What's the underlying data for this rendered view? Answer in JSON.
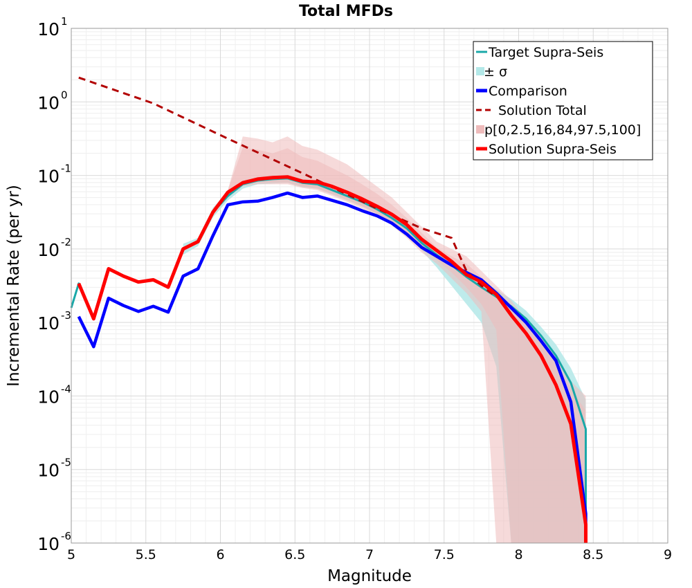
{
  "chart_data": {
    "type": "line",
    "title": "Total MFDs",
    "xlabel": "Magnitude",
    "ylabel": "Incremental Rate (per yr)",
    "xlim": [
      5,
      9
    ],
    "ylim_log10": [
      -6,
      1
    ],
    "y_scale": "log",
    "grid": true,
    "legend_position": "top-right",
    "x_ticks": [
      "5",
      "5.5",
      "6",
      "6.5",
      "7",
      "7.5",
      "8",
      "8.5",
      "9"
    ],
    "y_ticks": [
      {
        "base": "10",
        "exp": "1"
      },
      {
        "base": "10",
        "exp": "0"
      },
      {
        "base": "10",
        "exp": "-1"
      },
      {
        "base": "10",
        "exp": "-2"
      },
      {
        "base": "10",
        "exp": "-3"
      },
      {
        "base": "10",
        "exp": "-4"
      },
      {
        "base": "10",
        "exp": "-5"
      },
      {
        "base": "10",
        "exp": "-6"
      }
    ],
    "colors": {
      "target": "#1aa8a8",
      "sigma": "#b3e8e8",
      "comparison": "#0000ff",
      "total": "#b20000",
      "percentile": "#eebbbb",
      "supra": "#ff0000"
    },
    "legend": [
      {
        "key": "target",
        "label": "Target Supra-Seis"
      },
      {
        "key": "sigma",
        "label": "± σ"
      },
      {
        "key": "comparison",
        "label": "Comparison"
      },
      {
        "key": "total",
        "label": "Solution Total"
      },
      {
        "key": "percentile",
        "label": "p[0,2.5,16,84,97.5,100]"
      },
      {
        "key": "supra",
        "label": "Solution Supra-Seis"
      }
    ],
    "series": [
      {
        "key": "target",
        "name": "Target Supra-Seis",
        "x": [
          5.0,
          5.05,
          5.15,
          5.25,
          5.35,
          5.45,
          5.55,
          5.65,
          5.75,
          5.85,
          5.95,
          6.05,
          6.15,
          6.25,
          6.35,
          6.45,
          6.55,
          6.65,
          6.75,
          6.85,
          6.95,
          7.05,
          7.15,
          7.25,
          7.35,
          7.45,
          7.55,
          7.65,
          7.75,
          7.85,
          7.95,
          8.05,
          8.15,
          8.25,
          8.35,
          8.45,
          8.45
        ],
        "y": [
          -2.8,
          -2.47,
          -2.95,
          -2.27,
          -2.37,
          -2.45,
          -2.42,
          -2.52,
          -2.0,
          -1.9,
          -1.5,
          -1.28,
          -1.12,
          -1.07,
          -1.05,
          -1.04,
          -1.1,
          -1.12,
          -1.2,
          -1.28,
          -1.36,
          -1.46,
          -1.58,
          -1.72,
          -1.92,
          -2.08,
          -2.22,
          -2.38,
          -2.52,
          -2.65,
          -2.78,
          -2.95,
          -3.18,
          -3.45,
          -3.82,
          -4.45,
          -6.0
        ]
      },
      {
        "key": "comparison",
        "name": "Comparison",
        "x": [
          5.05,
          5.15,
          5.25,
          5.35,
          5.45,
          5.55,
          5.65,
          5.75,
          5.85,
          5.95,
          6.05,
          6.15,
          6.25,
          6.35,
          6.45,
          6.55,
          6.65,
          6.75,
          6.85,
          6.95,
          7.05,
          7.15,
          7.25,
          7.35,
          7.45,
          7.55,
          7.65,
          7.75,
          7.85,
          7.95,
          8.05,
          8.15,
          8.25,
          8.35,
          8.45,
          8.45
        ],
        "y": [
          -2.92,
          -3.33,
          -2.67,
          -2.77,
          -2.85,
          -2.78,
          -2.86,
          -2.37,
          -2.27,
          -1.82,
          -1.4,
          -1.36,
          -1.35,
          -1.3,
          -1.24,
          -1.3,
          -1.28,
          -1.34,
          -1.4,
          -1.48,
          -1.55,
          -1.65,
          -1.8,
          -1.98,
          -2.1,
          -2.22,
          -2.32,
          -2.42,
          -2.6,
          -2.8,
          -3.0,
          -3.25,
          -3.52,
          -4.08,
          -5.6,
          -6.0
        ]
      },
      {
        "key": "total",
        "name": "Solution Total",
        "dashed": true,
        "x": [
          5.05,
          5.55,
          6.05,
          6.55,
          7.05,
          7.35,
          7.55,
          7.65,
          7.75,
          7.85
        ],
        "y": [
          0.33,
          -0.02,
          -0.5,
          -0.97,
          -1.45,
          -1.72,
          -1.85,
          -2.3,
          -2.5,
          -2.65
        ]
      },
      {
        "key": "supra",
        "name": "Solution Supra-Seis",
        "x": [
          5.05,
          5.15,
          5.25,
          5.35,
          5.45,
          5.55,
          5.65,
          5.75,
          5.85,
          5.95,
          6.05,
          6.15,
          6.25,
          6.35,
          6.45,
          6.55,
          6.65,
          6.75,
          6.85,
          6.95,
          7.05,
          7.15,
          7.25,
          7.35,
          7.45,
          7.55,
          7.65,
          7.75,
          7.85,
          7.95,
          8.05,
          8.15,
          8.25,
          8.35,
          8.45,
          8.45
        ],
        "y": [
          -2.47,
          -2.95,
          -2.27,
          -2.37,
          -2.45,
          -2.42,
          -2.52,
          -2.0,
          -1.9,
          -1.5,
          -1.23,
          -1.1,
          -1.05,
          -1.03,
          -1.02,
          -1.08,
          -1.09,
          -1.15,
          -1.23,
          -1.32,
          -1.42,
          -1.53,
          -1.67,
          -1.87,
          -2.02,
          -2.17,
          -2.35,
          -2.45,
          -2.62,
          -2.9,
          -3.15,
          -3.45,
          -3.85,
          -4.38,
          -5.75,
          -6.0
        ]
      }
    ],
    "bands": [
      {
        "key": "sigma",
        "x": [
          5.75,
          5.85,
          5.95,
          6.05,
          6.15,
          6.25,
          6.35,
          6.45,
          6.55,
          6.65,
          6.75,
          6.85,
          6.95,
          7.05,
          7.15,
          7.25,
          7.35,
          7.45,
          7.55,
          7.65,
          7.75,
          7.85,
          7.95,
          8.05,
          8.15,
          8.25,
          8.35,
          8.45,
          8.45
        ],
        "upper": [
          -1.93,
          -1.85,
          -1.44,
          -1.22,
          -1.07,
          -1.02,
          -1.0,
          -0.99,
          -1.05,
          -1.08,
          -1.16,
          -1.24,
          -1.32,
          -1.42,
          -1.54,
          -1.68,
          -1.86,
          -2.02,
          -2.16,
          -2.3,
          -2.42,
          -2.55,
          -2.68,
          -2.84,
          -3.06,
          -3.3,
          -3.62,
          -4.05,
          -6.0
        ],
        "lower": [
          -2.08,
          -1.96,
          -1.57,
          -1.34,
          -1.18,
          -1.12,
          -1.11,
          -1.1,
          -1.16,
          -1.18,
          -1.26,
          -1.34,
          -1.42,
          -1.52,
          -1.64,
          -1.8,
          -2.02,
          -2.25,
          -2.5,
          -2.75,
          -3.0,
          -3.6,
          -6.0,
          -6.0,
          -6.0,
          -6.0,
          -6.0,
          -6.0,
          -6.0
        ]
      },
      {
        "key": "percentile",
        "x": [
          5.95,
          6.05,
          6.15,
          6.25,
          6.35,
          6.45,
          6.55,
          6.65,
          6.75,
          6.85,
          6.95,
          7.05,
          7.15,
          7.25,
          7.35,
          7.45,
          7.55,
          7.65,
          7.75,
          7.85,
          7.95,
          8.05,
          8.15,
          8.25,
          8.35,
          8.45,
          8.45
        ],
        "upper": [
          -1.45,
          -1.2,
          -0.47,
          -0.5,
          -0.55,
          -0.47,
          -0.6,
          -0.65,
          -0.75,
          -0.85,
          -1.0,
          -1.15,
          -1.3,
          -1.5,
          -1.7,
          -1.9,
          -2.0,
          -2.1,
          -2.3,
          -2.5,
          -2.7,
          -2.95,
          -3.2,
          -3.45,
          -3.8,
          -4.0,
          -6.0
        ],
        "lower": [
          -1.55,
          -1.3,
          -1.15,
          -1.12,
          -1.12,
          -1.12,
          -1.17,
          -1.2,
          -1.28,
          -1.36,
          -1.45,
          -1.55,
          -1.68,
          -1.85,
          -2.05,
          -2.2,
          -2.4,
          -2.6,
          -2.85,
          -6.0,
          -6.0,
          -6.0,
          -6.0,
          -6.0,
          -6.0,
          -6.0,
          -6.0
        ]
      },
      {
        "key": "percentile",
        "x": [
          6.05,
          6.15,
          6.25,
          6.35,
          6.45,
          6.55,
          6.65,
          6.75,
          6.85,
          6.95,
          7.05,
          7.15,
          7.25,
          7.35,
          7.45,
          7.55,
          7.65,
          7.75,
          7.85,
          7.95,
          8.05,
          8.15,
          8.25,
          8.35,
          8.45,
          8.45
        ],
        "upper": [
          -1.2,
          -0.62,
          -0.65,
          -0.7,
          -0.63,
          -0.75,
          -0.8,
          -0.9,
          -1.0,
          -1.12,
          -1.25,
          -1.4,
          -1.58,
          -1.78,
          -1.98,
          -2.1,
          -2.2,
          -2.38,
          -2.58,
          -2.78,
          -3.02,
          -3.28,
          -3.55,
          -3.9,
          -4.2,
          -6.0
        ],
        "lower": [
          -1.28,
          -1.13,
          -1.1,
          -1.1,
          -1.1,
          -1.15,
          -1.18,
          -1.25,
          -1.33,
          -1.42,
          -1.52,
          -1.64,
          -1.8,
          -1.98,
          -2.15,
          -2.32,
          -2.52,
          -2.75,
          -3.1,
          -6.0,
          -6.0,
          -6.0,
          -6.0,
          -6.0,
          -6.0,
          -6.0
        ]
      }
    ]
  }
}
